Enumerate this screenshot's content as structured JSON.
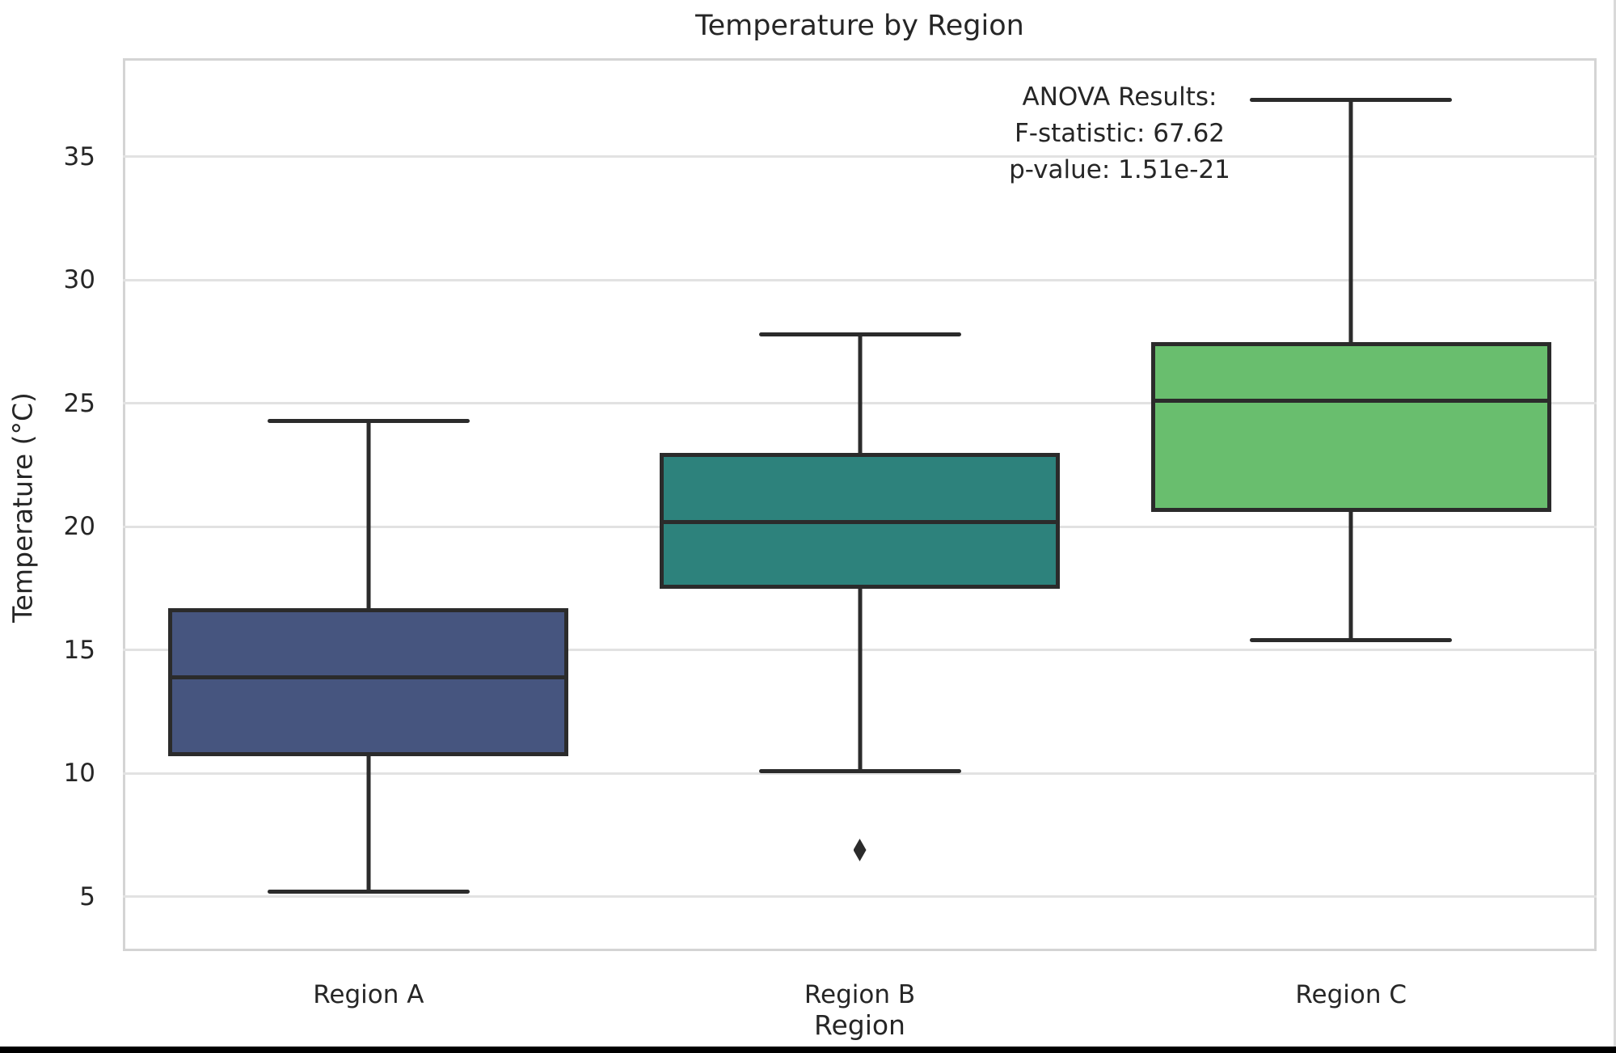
{
  "chart_data": {
    "type": "box",
    "title": "Temperature by Region",
    "xlabel": "Region",
    "ylabel": "Temperature (°C)",
    "ylim": [
      2.8,
      39.0
    ],
    "yticks": [
      5,
      10,
      15,
      20,
      25,
      30,
      35
    ],
    "grid": "horizontal",
    "categories": [
      "Region A",
      "Region B",
      "Region C"
    ],
    "series": [
      {
        "name": "Region A",
        "color": "#46557f",
        "whisker_low": 5.2,
        "q1": 10.7,
        "median": 13.9,
        "q3": 16.7,
        "whisker_high": 24.3,
        "outliers": []
      },
      {
        "name": "Region B",
        "color": "#2d827c",
        "whisker_low": 10.1,
        "q1": 17.5,
        "median": 20.2,
        "q3": 23.0,
        "whisker_high": 27.8,
        "outliers": [
          6.9
        ]
      },
      {
        "name": "Region C",
        "color": "#69be6e",
        "whisker_low": 15.4,
        "q1": 20.6,
        "median": 25.1,
        "q3": 27.5,
        "whisker_high": 37.3,
        "outliers": []
      }
    ],
    "annotation": "ANOVA Results:\nF-statistic: 67.62\np-value: 1.51e-21",
    "line_color": "#2b2b2b",
    "grid_color": "#e2e2e2",
    "spine_color": "#d4d4d4"
  }
}
